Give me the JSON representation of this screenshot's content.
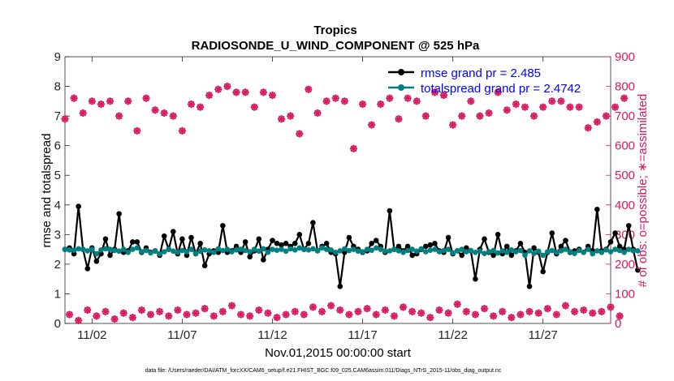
{
  "chart_data": {
    "type": "line",
    "title": "Tropics",
    "subtitle": "RADIOSONDE_U_WIND_COMPONENT @ 525 hPa",
    "xlabel": "Nov.01,2015 00:00:00 start",
    "ylabel_left": "rmse and totalspread",
    "ylabel_right": "# of obs: o=possible; ∗=assimilated",
    "footnote": "data file: /Users/raeder/DAI/ATM_forcXX/CAM6_setup/f.e21.FHIST_BGC.f09_025.CAM6assim.011/Diags_NTrS_2015-11/obs_diag_output.nc",
    "xlim": [
      0.5,
      30.75
    ],
    "ylim_left": [
      0,
      9
    ],
    "ylim_right": [
      0,
      900
    ],
    "yticks_left": [
      "0",
      "1",
      "2",
      "3",
      "4",
      "5",
      "6",
      "7",
      "8",
      "9"
    ],
    "yticks_right": [
      "0",
      "100",
      "200",
      "300",
      "400",
      "500",
      "600",
      "700",
      "800",
      "900"
    ],
    "xticks": [
      {
        "day": 2,
        "label": "11/02"
      },
      {
        "day": 7,
        "label": "11/07"
      },
      {
        "day": 12,
        "label": "11/12"
      },
      {
        "day": 17,
        "label": "11/17"
      },
      {
        "day": 22,
        "label": "11/22"
      },
      {
        "day": 27,
        "label": "11/27"
      }
    ],
    "legend": {
      "position": "top-right",
      "entries": [
        "rmse grand pr = 2.485",
        "totalspread grand pr = 2.4742"
      ]
    },
    "colors": {
      "rmse": "#000000",
      "totalspread": "#008080",
      "obs": "#d6195f",
      "legend_text": "#0000ff",
      "right_axis": "#d6195f"
    },
    "series": [
      {
        "name": "rmse",
        "axis": "left",
        "x_start": 0.5,
        "x_step": 0.25,
        "values": [
          2.5,
          2.55,
          2.35,
          3.95,
          2.5,
          1.85,
          2.55,
          2.1,
          2.35,
          2.85,
          2.3,
          2.5,
          3.7,
          2.4,
          2.45,
          2.75,
          2.75,
          2.4,
          2.55,
          2.4,
          2.45,
          2.3,
          2.95,
          2.5,
          3.1,
          2.35,
          2.85,
          2.3,
          2.9,
          2.35,
          2.7,
          1.95,
          2.35,
          2.45,
          2.4,
          3.3,
          2.4,
          2.45,
          2.6,
          2.4,
          2.75,
          2.25,
          2.45,
          2.85,
          2.15,
          2.5,
          2.8,
          2.7,
          2.65,
          2.7,
          2.6,
          2.7,
          3.0,
          2.5,
          2.7,
          3.4,
          2.45,
          2.6,
          2.7,
          2.4,
          2.35,
          1.25,
          2.4,
          2.9,
          2.6,
          2.5,
          2.4,
          2.45,
          2.7,
          2.8,
          2.6,
          2.4,
          3.8,
          2.5,
          2.6,
          2.45,
          2.6,
          2.3,
          2.35,
          2.5,
          2.6,
          2.65,
          2.7,
          2.45,
          2.4,
          2.9,
          2.35,
          2.45,
          2.3,
          2.55,
          2.45,
          1.5,
          2.5,
          2.85,
          2.4,
          2.3,
          3.0,
          2.35,
          2.6,
          2.3,
          2.45,
          2.7,
          2.4,
          1.25,
          2.55,
          2.4,
          1.75,
          2.4,
          3.05,
          2.35,
          2.6,
          2.8,
          2.4,
          2.45,
          2.5,
          2.4,
          2.6,
          2.45,
          3.85,
          2.45,
          2.5,
          2.75,
          3.05,
          2.6,
          2.5,
          3.3,
          2.5,
          1.8
        ]
      },
      {
        "name": "totalspread",
        "axis": "left",
        "x_start": 0.5,
        "x_step": 0.25,
        "values": [
          2.5,
          2.48,
          2.47,
          2.52,
          2.5,
          2.45,
          2.5,
          2.35,
          2.48,
          2.52,
          2.5,
          2.46,
          2.44,
          2.5,
          2.4,
          2.5,
          2.55,
          2.42,
          2.46,
          2.38,
          2.44,
          2.35,
          2.42,
          2.5,
          2.44,
          2.4,
          2.46,
          2.42,
          2.5,
          2.36,
          2.44,
          2.48,
          2.45,
          2.4,
          2.52,
          2.46,
          2.5,
          2.42,
          2.48,
          2.5,
          2.46,
          2.42,
          2.5,
          2.44,
          2.52,
          2.4,
          2.5,
          2.47,
          2.5,
          2.44,
          2.52,
          2.48,
          2.55,
          2.5,
          2.48,
          2.52,
          2.45,
          2.55,
          2.5,
          2.48,
          2.4,
          2.45,
          2.52,
          2.46,
          2.5,
          2.44,
          2.42,
          2.5,
          2.47,
          2.55,
          2.5,
          2.44,
          2.45,
          2.5,
          2.45,
          2.4,
          2.46,
          2.5,
          2.44,
          2.52,
          2.42,
          2.47,
          2.5,
          2.42,
          2.46,
          2.5,
          2.38,
          2.45,
          2.5,
          2.42,
          2.46,
          2.4,
          2.44,
          2.36,
          2.42,
          2.46,
          2.38,
          2.45,
          2.4,
          2.48,
          2.42,
          2.46,
          2.3,
          2.45,
          2.36,
          2.44,
          2.3,
          2.42,
          2.46,
          2.4,
          2.45,
          2.5,
          2.42,
          2.36,
          2.46,
          2.4,
          2.5,
          2.35,
          2.45,
          2.4,
          2.48,
          2.42,
          2.5,
          2.46,
          2.4,
          2.5,
          2.45,
          2.45
        ]
      },
      {
        "name": "obs_possible",
        "axis": "right",
        "marker": "o",
        "x_start": 0.5,
        "x_step": 0.5,
        "values": [
          690,
          760,
          710,
          750,
          740,
          750,
          700,
          750,
          650,
          760,
          720,
          710,
          700,
          650,
          740,
          730,
          770,
          790,
          800,
          780,
          780,
          730,
          780,
          770,
          690,
          700,
          640,
          790,
          710,
          750,
          760,
          750,
          590,
          740,
          670,
          740,
          760,
          690,
          760,
          750,
          700,
          780,
          770,
          670,
          700,
          750,
          700,
          710,
          780,
          720,
          740,
          730,
          700,
          730,
          750,
          750,
          730,
          730,
          660,
          680,
          700,
          730,
          760
        ]
      },
      {
        "name": "obs_assimilated",
        "axis": "right",
        "marker": "*",
        "x_start": 0.5,
        "x_step": 0.5,
        "values": [
          690,
          760,
          710,
          750,
          740,
          750,
          700,
          750,
          650,
          760,
          720,
          710,
          700,
          650,
          740,
          730,
          770,
          790,
          800,
          780,
          780,
          730,
          780,
          770,
          690,
          700,
          640,
          790,
          710,
          750,
          760,
          750,
          590,
          740,
          670,
          740,
          760,
          690,
          760,
          750,
          700,
          780,
          770,
          670,
          700,
          750,
          700,
          710,
          780,
          720,
          740,
          730,
          700,
          730,
          750,
          750,
          730,
          730,
          660,
          680,
          700,
          730,
          760
        ]
      },
      {
        "name": "obs_possible_low",
        "axis": "right",
        "marker": "o",
        "x_start": 0.75,
        "x_step": 0.5,
        "values": [
          30,
          10,
          45,
          25,
          40,
          15,
          35,
          20,
          45,
          30,
          40,
          25,
          45,
          30,
          35,
          50,
          25,
          40,
          60,
          30,
          25,
          45,
          35,
          20,
          30,
          40,
          30,
          55,
          40,
          60,
          45,
          30,
          40,
          50,
          30,
          45,
          25,
          55,
          40,
          35,
          20,
          45,
          35,
          65,
          40,
          30,
          50,
          25,
          40,
          20,
          30,
          40,
          35,
          50,
          30,
          60,
          40,
          45,
          35,
          40,
          55,
          25
        ]
      },
      {
        "name": "obs_assimilated_low",
        "axis": "right",
        "marker": "*",
        "x_start": 0.75,
        "x_step": 0.5,
        "values": [
          30,
          10,
          45,
          25,
          40,
          15,
          35,
          20,
          45,
          30,
          40,
          25,
          45,
          30,
          35,
          50,
          25,
          40,
          60,
          30,
          25,
          45,
          35,
          20,
          30,
          40,
          30,
          55,
          40,
          60,
          45,
          30,
          40,
          50,
          30,
          45,
          25,
          55,
          40,
          35,
          20,
          45,
          35,
          65,
          40,
          30,
          50,
          25,
          40,
          20,
          30,
          40,
          35,
          50,
          30,
          60,
          40,
          45,
          35,
          40,
          55,
          25
        ]
      }
    ]
  }
}
